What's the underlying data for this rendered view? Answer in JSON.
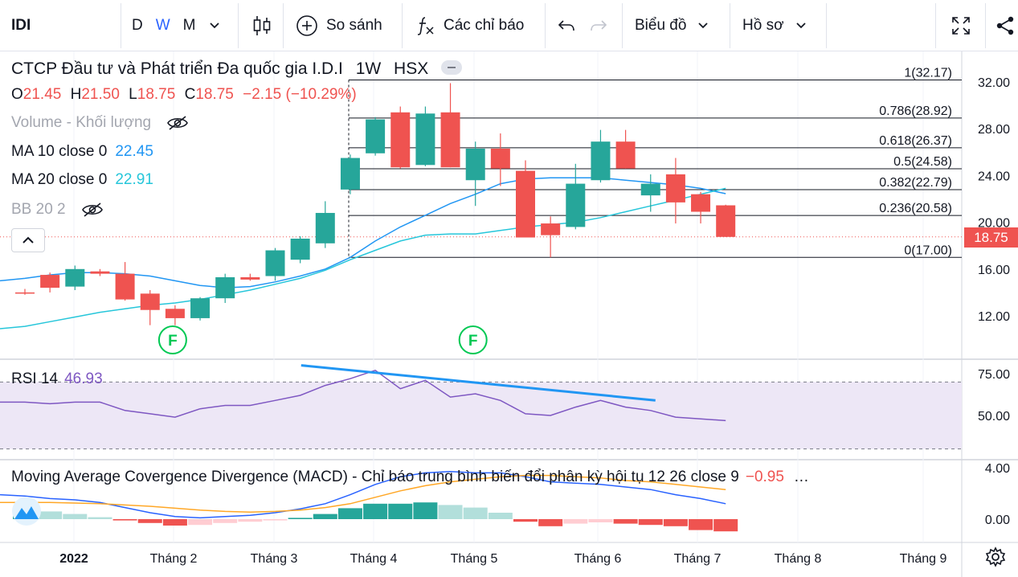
{
  "toolbar": {
    "symbol": "IDI",
    "resolutions": [
      "D",
      "W",
      "M"
    ],
    "active_resolution": "W",
    "compare_label": "So sánh",
    "indicators_label": "Các chỉ báo",
    "chart_label": "Biểu đồ",
    "profile_label": "Hồ sơ"
  },
  "legend": {
    "title": "CTCP Đầu tư và Phát triển Đa quốc gia I.D.I",
    "interval": "1W",
    "exchange": "HSX",
    "ohlc": {
      "o_label": "O",
      "o": "21.45",
      "h_label": "H",
      "h": "21.50",
      "l_label": "L",
      "l": "18.75",
      "c_label": "C",
      "c": "18.75",
      "change": "−2.15 (−10.29%)"
    },
    "volume": "Volume - Khối lượng",
    "ma10_label": "MA 10 close 0",
    "ma10_value": "22.45",
    "ma20_label": "MA 20 close 0",
    "ma20_value": "22.91",
    "bb_label": "BB 20 2",
    "rsi_label": "RSI 14",
    "rsi_value": "46.93",
    "macd_label": "Moving Average Covergence Divergence (MACD) - Chỉ báo trung bình biến đổi phân kỳ hội tụ 12 26 close 9",
    "macd_value": "−0.95",
    "macd_more": "…"
  },
  "colors": {
    "up": "#26a69a",
    "down": "#ef5350",
    "ma10": "#2196f3",
    "ma20": "#26c6da",
    "rsi": "#7e57c2",
    "rsi_band": "#ede7f6",
    "trend": "#2196f3",
    "macd_line": "#2962ff",
    "signal_line": "#ffa726",
    "fib": "#131722",
    "event": "#00c853"
  },
  "chart_data": {
    "type": "candlestick",
    "symbol": "IDI",
    "interval": "1W",
    "x_labels": [
      "2022",
      "Tháng 2",
      "Tháng 3",
      "Tháng 4",
      "Tháng 5",
      "Tháng 6",
      "Tháng 7",
      "Tháng 8",
      "Tháng 9"
    ],
    "price_axis": {
      "ticks": [
        "32.00",
        "28.00",
        "24.00",
        "20.00",
        "16.00",
        "12.00"
      ],
      "range": [
        9.0,
        34.0
      ]
    },
    "last_price": "18.75",
    "candles": [
      {
        "o": 14.0,
        "h": 14.3,
        "l": 13.8,
        "c": 13.9
      },
      {
        "o": 15.5,
        "h": 15.7,
        "l": 14.0,
        "c": 14.4
      },
      {
        "o": 14.5,
        "h": 16.3,
        "l": 14.2,
        "c": 16.0
      },
      {
        "o": 15.8,
        "h": 16.0,
        "l": 15.4,
        "c": 15.6
      },
      {
        "o": 15.6,
        "h": 16.6,
        "l": 13.3,
        "c": 13.4
      },
      {
        "o": 13.9,
        "h": 14.2,
        "l": 11.2,
        "c": 12.5
      },
      {
        "o": 12.6,
        "h": 12.9,
        "l": 11.2,
        "c": 11.8
      },
      {
        "o": 11.8,
        "h": 13.6,
        "l": 11.6,
        "c": 13.5
      },
      {
        "o": 13.5,
        "h": 15.6,
        "l": 13.1,
        "c": 15.3
      },
      {
        "o": 15.3,
        "h": 15.6,
        "l": 15.0,
        "c": 15.1
      },
      {
        "o": 15.4,
        "h": 17.8,
        "l": 15.0,
        "c": 17.6
      },
      {
        "o": 16.8,
        "h": 18.8,
        "l": 16.5,
        "c": 18.6
      },
      {
        "o": 18.2,
        "h": 21.8,
        "l": 17.8,
        "c": 20.8
      },
      {
        "o": 22.8,
        "h": 25.8,
        "l": 22.4,
        "c": 25.5
      },
      {
        "o": 25.9,
        "h": 29.0,
        "l": 25.7,
        "c": 28.8
      },
      {
        "o": 29.4,
        "h": 29.9,
        "l": 24.6,
        "c": 24.7
      },
      {
        "o": 24.9,
        "h": 29.9,
        "l": 24.8,
        "c": 29.3
      },
      {
        "o": 29.4,
        "h": 31.9,
        "l": 24.7,
        "c": 24.7
      },
      {
        "o": 23.6,
        "h": 26.9,
        "l": 21.4,
        "c": 26.3
      },
      {
        "o": 26.3,
        "h": 27.6,
        "l": 23.1,
        "c": 24.6
      },
      {
        "o": 24.4,
        "h": 25.3,
        "l": 18.7,
        "c": 18.7
      },
      {
        "o": 19.9,
        "h": 20.5,
        "l": 17.0,
        "c": 18.9
      },
      {
        "o": 19.6,
        "h": 25.0,
        "l": 19.4,
        "c": 23.3
      },
      {
        "o": 23.6,
        "h": 27.9,
        "l": 23.4,
        "c": 26.9
      },
      {
        "o": 26.9,
        "h": 27.9,
        "l": 24.6,
        "c": 24.6
      },
      {
        "o": 22.3,
        "h": 24.1,
        "l": 20.9,
        "c": 23.3
      },
      {
        "o": 24.1,
        "h": 25.5,
        "l": 19.9,
        "c": 21.7
      },
      {
        "o": 22.4,
        "h": 22.6,
        "l": 19.9,
        "c": 20.9
      },
      {
        "o": 21.45,
        "h": 21.5,
        "l": 18.75,
        "c": 18.75
      }
    ],
    "ma10": [
      15.2,
      15.5,
      15.7,
      15.7,
      15.6,
      15.4,
      15.0,
      14.6,
      14.4,
      14.5,
      14.9,
      15.4,
      16.0,
      17.0,
      18.4,
      19.6,
      20.6,
      21.6,
      22.4,
      23.3,
      23.7,
      23.8,
      23.8,
      23.8,
      23.6,
      23.4,
      23.2,
      22.9,
      22.45
    ],
    "ma20": [
      11.1,
      11.5,
      11.9,
      12.3,
      12.6,
      12.9,
      13.1,
      13.4,
      13.8,
      14.2,
      14.7,
      15.2,
      15.9,
      16.8,
      17.6,
      18.4,
      18.9,
      19.0,
      19.0,
      19.3,
      19.6,
      19.8,
      20.0,
      20.4,
      20.9,
      21.4,
      21.9,
      22.4,
      22.91
    ],
    "fibonacci": [
      {
        "label": "1(32.17)",
        "price": 32.17
      },
      {
        "label": "0.786(28.92)",
        "price": 28.92
      },
      {
        "label": "0.618(26.37)",
        "price": 26.37
      },
      {
        "label": "0.5(24.58)",
        "price": 24.58
      },
      {
        "label": "0.382(22.79)",
        "price": 22.79
      },
      {
        "label": "0.236(20.58)",
        "price": 20.58
      },
      {
        "label": "0(17.00)",
        "price": 17.0
      }
    ],
    "events": [
      {
        "label": "F",
        "index": 6
      },
      {
        "label": "F",
        "index": 18
      }
    ],
    "rsi": {
      "axis_ticks": [
        "75.00",
        "50.00"
      ],
      "upper": 70,
      "lower": 30,
      "values": [
        58,
        57,
        58,
        58,
        53,
        51,
        49,
        54,
        56,
        56,
        59,
        62,
        68,
        72,
        77,
        66,
        71,
        61,
        63,
        59,
        51,
        50,
        55,
        59,
        55,
        53,
        49,
        48,
        46.93
      ],
      "trendline": {
        "from_index": 12,
        "from_value": 80,
        "to_index": 25,
        "to_value": 59
      }
    },
    "macd": {
      "axis_ticks": [
        "4.00",
        "0.00"
      ],
      "histogram": [
        0.7,
        0.6,
        0.4,
        0.15,
        -0.1,
        -0.3,
        -0.5,
        -0.45,
        -0.3,
        -0.2,
        -0.1,
        0.1,
        0.4,
        0.85,
        1.2,
        1.2,
        1.3,
        1.1,
        0.9,
        0.5,
        -0.2,
        -0.55,
        -0.35,
        -0.25,
        -0.35,
        -0.45,
        -0.55,
        -0.85,
        -0.95
      ],
      "macd_line": [
        1.8,
        1.6,
        1.5,
        1.3,
        0.9,
        0.5,
        0.2,
        0.1,
        0.2,
        0.3,
        0.5,
        0.8,
        1.2,
        1.9,
        2.7,
        3.3,
        3.6,
        3.7,
        3.6,
        3.6,
        3.3,
        2.9,
        2.8,
        2.7,
        2.5,
        2.3,
        1.9,
        1.6,
        1.2
      ],
      "signal_line": [
        1.3,
        1.3,
        1.25,
        1.2,
        1.1,
        1.0,
        0.85,
        0.7,
        0.6,
        0.55,
        0.6,
        0.7,
        0.9,
        1.2,
        1.7,
        2.2,
        2.6,
        2.9,
        3.1,
        3.3,
        3.4,
        3.4,
        3.3,
        3.2,
        3.0,
        2.9,
        2.7,
        2.5,
        2.3
      ],
      "macd_range": [
        -1.5,
        4.5
      ]
    }
  }
}
